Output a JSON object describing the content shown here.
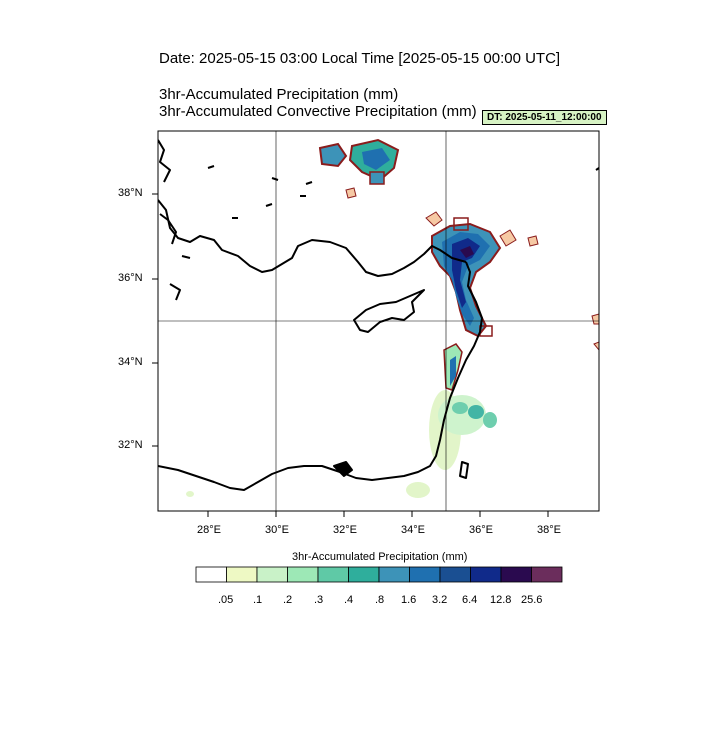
{
  "header": {
    "date_line": "Date: 2025-05-15  03:00 Local Time [2025-05-15  00:00 UTC]",
    "title_1": "3hr-Accumulated Precipitation   (mm)",
    "title_2": "3hr-Accumulated Convective Precipitation   (mm)",
    "dt_badge": "DT: 2025-05-11_12:00:00"
  },
  "map": {
    "lat_labels": [
      "38°N",
      "36°N",
      "34°N",
      "32°N"
    ],
    "lon_labels": [
      "28°E",
      "30°E",
      "32°E",
      "34°E",
      "36°E",
      "38°E"
    ],
    "lat_range": [
      30.4,
      39.4
    ],
    "lon_range": [
      26.6,
      39.4
    ],
    "grid_lines": {
      "lon": [
        30,
        35
      ],
      "lat": [
        35
      ]
    }
  },
  "colorbar": {
    "title": "3hr-Accumulated Precipitation  (mm)",
    "labels": [
      ".05",
      ".1",
      ".2",
      ".3",
      ".4",
      ".8",
      "1.6",
      "3.2",
      "6.4",
      "12.8",
      "25.6"
    ],
    "colors": [
      "#ffffff",
      "#eef9c4",
      "#c9f2c8",
      "#9de8b6",
      "#5fc9a6",
      "#2fae9c",
      "#3d93b8",
      "#1f70b0",
      "#1a4f92",
      "#102a8a",
      "#2a0a4f",
      "#6b2d5c"
    ]
  }
}
